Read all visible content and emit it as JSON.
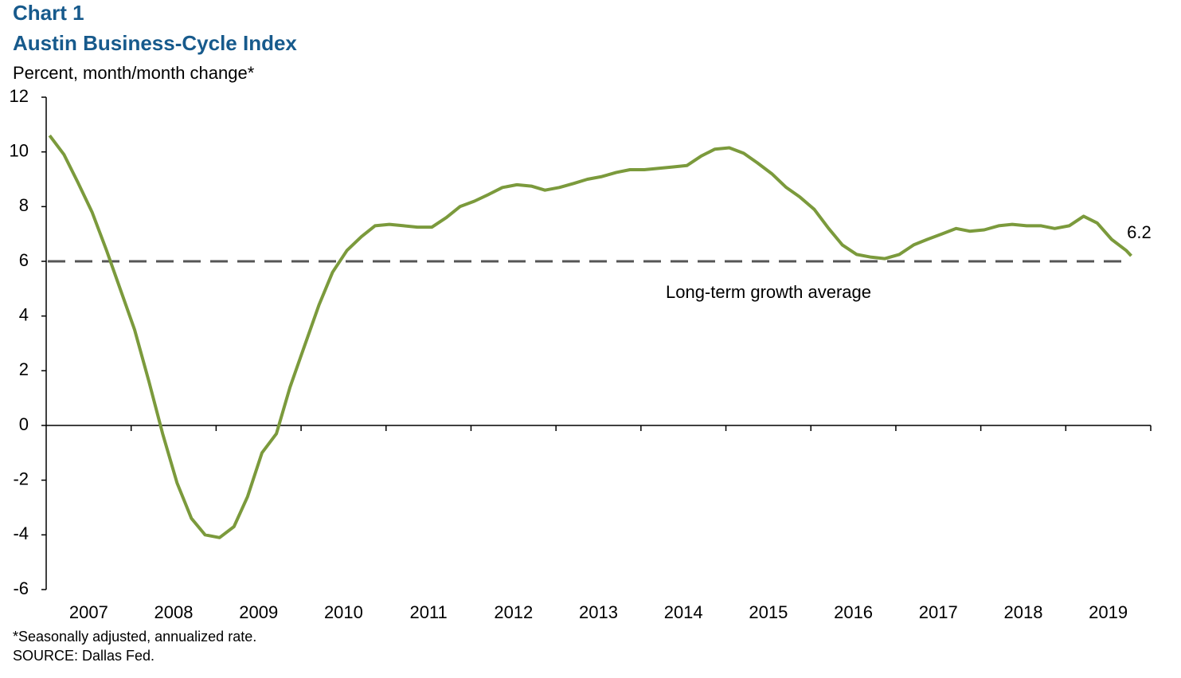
{
  "chart_data": {
    "type": "line",
    "title": "Chart 1",
    "subtitle": "Austin Business-Cycle Index",
    "y_axis_label": "Percent, month/month change*",
    "footnotes": [
      "*Seasonally adjusted, annualized rate.",
      "SOURCE: Dallas Fed."
    ],
    "xlim": [
      2007,
      2020
    ],
    "xticks": [
      2007,
      2008,
      2009,
      2010,
      2011,
      2012,
      2013,
      2014,
      2015,
      2016,
      2017,
      2018,
      2019
    ],
    "ylim": [
      -6,
      12
    ],
    "yticks": [
      12,
      10,
      8,
      6,
      4,
      2,
      0,
      -2,
      -4,
      -6
    ],
    "grid": false,
    "reference_line": {
      "value": 6,
      "label": "Long-term growth average",
      "color": "#555555"
    },
    "series": [
      {
        "name": "Austin Business-Cycle Index",
        "color": "#7b9a3c",
        "x": [
          2007.04,
          2007.21,
          2007.37,
          2007.54,
          2007.71,
          2007.87,
          2008.04,
          2008.21,
          2008.37,
          2008.54,
          2008.71,
          2008.87,
          2009.04,
          2009.21,
          2009.37,
          2009.54,
          2009.71,
          2009.87,
          2010.04,
          2010.21,
          2010.37,
          2010.54,
          2010.71,
          2010.87,
          2011.04,
          2011.21,
          2011.37,
          2011.54,
          2011.71,
          2011.87,
          2012.04,
          2012.21,
          2012.37,
          2012.54,
          2012.71,
          2012.87,
          2013.04,
          2013.21,
          2013.37,
          2013.54,
          2013.71,
          2013.87,
          2014.04,
          2014.21,
          2014.37,
          2014.54,
          2014.71,
          2014.87,
          2015.04,
          2015.21,
          2015.37,
          2015.54,
          2015.71,
          2015.87,
          2016.04,
          2016.21,
          2016.37,
          2016.54,
          2016.71,
          2016.87,
          2017.04,
          2017.21,
          2017.37,
          2017.54,
          2017.71,
          2017.87,
          2018.04,
          2018.21,
          2018.37,
          2018.54,
          2018.71,
          2018.87,
          2019.04,
          2019.21,
          2019.37,
          2019.54,
          2019.71,
          2019.77
        ],
        "values": [
          10.6,
          9.9,
          8.9,
          7.8,
          6.4,
          5.0,
          3.5,
          1.6,
          -0.3,
          -2.1,
          -3.4,
          -4.0,
          -4.1,
          -3.7,
          -2.6,
          -1.0,
          -0.3,
          1.4,
          2.9,
          4.4,
          5.6,
          6.4,
          6.9,
          7.3,
          7.35,
          7.3,
          7.25,
          7.25,
          7.6,
          8.0,
          8.2,
          8.45,
          8.7,
          8.8,
          8.75,
          8.6,
          8.7,
          8.85,
          9.0,
          9.1,
          9.25,
          9.35,
          9.35,
          9.4,
          9.45,
          9.5,
          9.85,
          10.1,
          10.15,
          9.95,
          9.6,
          9.2,
          8.7,
          8.35,
          7.9,
          7.2,
          6.6,
          6.25,
          6.15,
          6.1,
          6.25,
          6.6,
          6.8,
          7.0,
          7.2,
          7.1,
          7.15,
          7.3,
          7.35,
          7.3,
          7.3,
          7.2,
          7.3,
          7.65,
          7.4,
          6.8,
          6.4,
          6.2
        ]
      }
    ]
  }
}
